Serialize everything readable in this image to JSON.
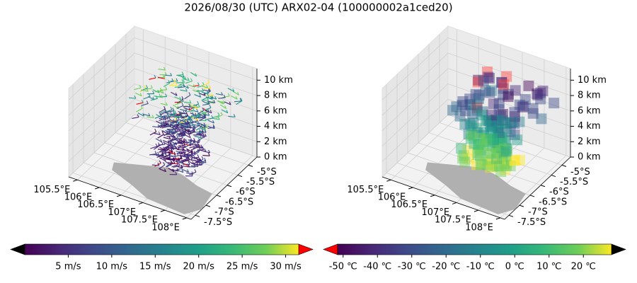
{
  "title": "2026/08/30 (UTC) ARX02-04 (100000002a1ced20)",
  "chart_data": [
    {
      "type": "3d-barbs",
      "xlim": [
        105.3,
        108.1
      ],
      "ylim": [
        -7.7,
        -4.6
      ],
      "zlim": [
        0,
        11.5
      ],
      "xticks": [
        {
          "value": 105.5,
          "label": "105.5°E"
        },
        {
          "value": 106,
          "label": "106°E"
        },
        {
          "value": 106.5,
          "label": "106.5°E"
        },
        {
          "value": 107,
          "label": "107°E"
        },
        {
          "value": 107.5,
          "label": "107.5°E"
        },
        {
          "value": 108,
          "label": "108°E"
        }
      ],
      "yticks": [
        {
          "value": -7.5,
          "label": "-7.5°S"
        },
        {
          "value": -7,
          "label": "-7°S"
        },
        {
          "value": -6.5,
          "label": "-6.5°S"
        },
        {
          "value": -6,
          "label": "-6°S"
        },
        {
          "value": -5.5,
          "label": "-5.5°S"
        },
        {
          "value": -5,
          "label": "-5°S"
        }
      ],
      "zticks": [
        {
          "value": 0,
          "label": "0 km"
        },
        {
          "value": 2,
          "label": "2 km"
        },
        {
          "value": 4,
          "label": "4 km"
        },
        {
          "value": 6,
          "label": "6 km"
        },
        {
          "value": 8,
          "label": "8 km"
        },
        {
          "value": 10,
          "label": "10 km"
        }
      ],
      "colorbar": {
        "colormap": "viridis",
        "lim": [
          0,
          31.5
        ],
        "under_color": "#000000",
        "over_color": "#ff0000",
        "ticks": [
          {
            "value": 5,
            "label": "5 m/s"
          },
          {
            "value": 10,
            "label": "10 m/s"
          },
          {
            "value": 15,
            "label": "15 m/s"
          },
          {
            "value": 20,
            "label": "20 m/s"
          },
          {
            "value": 25,
            "label": "25 m/s"
          },
          {
            "value": 30,
            "label": "30 m/s"
          }
        ]
      }
    },
    {
      "type": "3d-voxels",
      "xlim": [
        105.3,
        108.1
      ],
      "ylim": [
        -7.7,
        -4.6
      ],
      "zlim": [
        0,
        11.5
      ],
      "xticks": [
        {
          "value": 105.5,
          "label": "105.5°E"
        },
        {
          "value": 106,
          "label": "106°E"
        },
        {
          "value": 106.5,
          "label": "106.5°E"
        },
        {
          "value": 107,
          "label": "107°E"
        },
        {
          "value": 107.5,
          "label": "107.5°E"
        },
        {
          "value": 108,
          "label": "108°E"
        }
      ],
      "yticks": [
        {
          "value": -7.5,
          "label": "-7.5°S"
        },
        {
          "value": -7,
          "label": "-7°S"
        },
        {
          "value": -6.5,
          "label": "-6.5°S"
        },
        {
          "value": -6,
          "label": "-6°S"
        },
        {
          "value": -5.5,
          "label": "-5.5°S"
        },
        {
          "value": -5,
          "label": "-5°S"
        }
      ],
      "zticks": [
        {
          "value": 0,
          "label": "0 km"
        },
        {
          "value": 2,
          "label": "2 km"
        },
        {
          "value": 4,
          "label": "4 km"
        },
        {
          "value": 6,
          "label": "6 km"
        },
        {
          "value": 8,
          "label": "8 km"
        },
        {
          "value": 10,
          "label": "10 km"
        }
      ],
      "colorbar": {
        "colormap": "viridis",
        "lim": [
          -51.6,
          28.2
        ],
        "under_color": "#ff0000",
        "over_color": "#000000",
        "ticks": [
          {
            "value": -50,
            "label": "-50 ℃"
          },
          {
            "value": -40,
            "label": "-40 ℃"
          },
          {
            "value": -30,
            "label": "-30 ℃"
          },
          {
            "value": -20,
            "label": "-20 ℃"
          },
          {
            "value": -10,
            "label": "-10 ℃"
          },
          {
            "value": 0,
            "label": "0 ℃"
          },
          {
            "value": 10,
            "label": "10 ℃"
          },
          {
            "value": 20,
            "label": "20 ℃"
          }
        ]
      }
    }
  ]
}
